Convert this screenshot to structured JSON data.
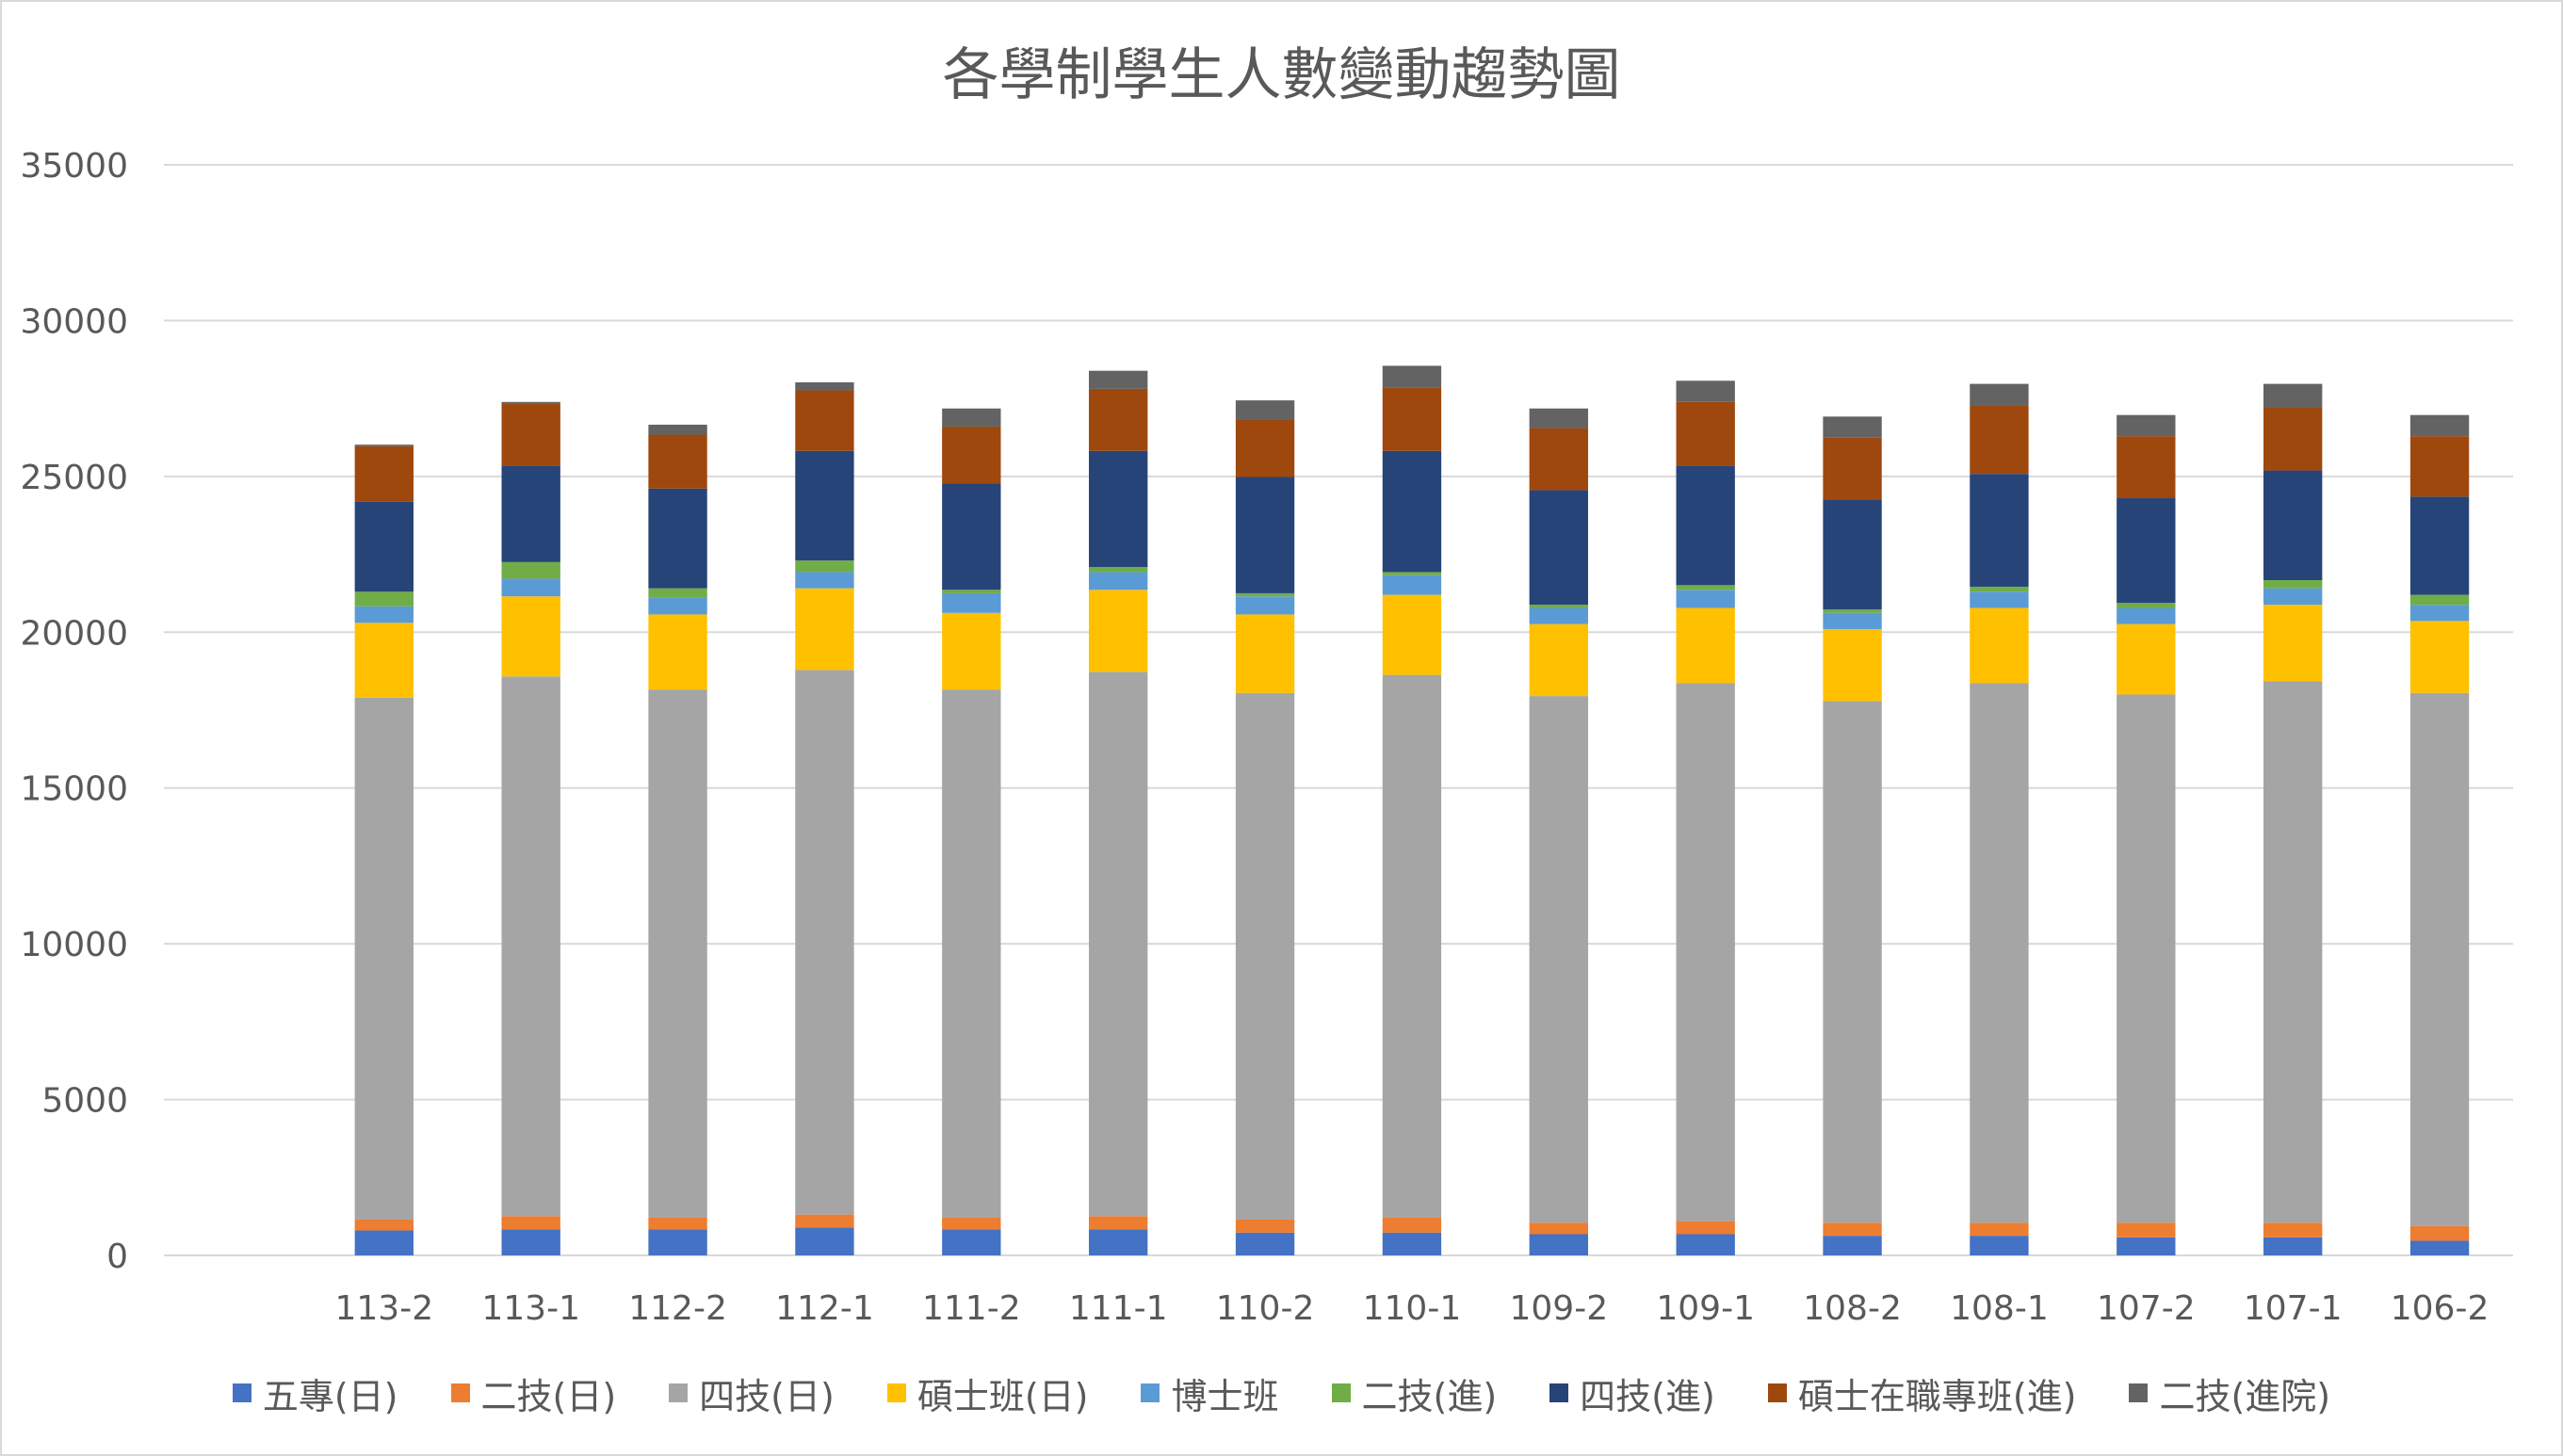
{
  "chart_data": {
    "type": "bar",
    "stacked": true,
    "title": "各學制學生人數變動趨勢圖",
    "xlabel": "",
    "ylabel": "",
    "ylim": [
      0,
      35000
    ],
    "yticks": [
      0,
      5000,
      10000,
      15000,
      20000,
      25000,
      30000,
      35000
    ],
    "grid": true,
    "legend_position": "bottom",
    "categories": [
      "",
      "113-2",
      "113-1",
      "112-2",
      "112-1",
      "111-2",
      "111-1",
      "110-2",
      "110-1",
      "109-2",
      "109-1",
      "108-2",
      "108-1",
      "107-2",
      "107-1",
      "106-2"
    ],
    "series": [
      {
        "name": "五專(日)",
        "color": "#4472C4",
        "values": [
          null,
          800,
          840,
          840,
          890,
          840,
          840,
          730,
          730,
          680,
          680,
          630,
          630,
          580,
          580,
          470
        ]
      },
      {
        "name": "二技(日)",
        "color": "#ED7D31",
        "values": [
          null,
          350,
          420,
          370,
          420,
          370,
          420,
          420,
          480,
          370,
          420,
          420,
          420,
          470,
          470,
          470
        ]
      },
      {
        "name": "四技(日)",
        "color": "#A5A5A5",
        "values": [
          null,
          16750,
          17320,
          16950,
          17480,
          16950,
          17470,
          16900,
          17420,
          16900,
          17270,
          16740,
          17320,
          16950,
          17370,
          17110
        ]
      },
      {
        "name": "碩士班(日)",
        "color": "#FFC000",
        "values": [
          null,
          2400,
          2570,
          2410,
          2620,
          2460,
          2630,
          2520,
          2570,
          2310,
          2410,
          2310,
          2410,
          2260,
          2460,
          2310
        ]
      },
      {
        "name": "博士班",
        "color": "#5B9BD5",
        "values": [
          null,
          530,
          570,
          530,
          520,
          630,
          570,
          580,
          630,
          520,
          580,
          520,
          520,
          520,
          530,
          520
        ]
      },
      {
        "name": "二技(進)",
        "color": "#70AD47",
        "values": [
          null,
          470,
          530,
          310,
          370,
          110,
          160,
          100,
          100,
          100,
          150,
          110,
          160,
          160,
          260,
          320
        ]
      },
      {
        "name": "四技(進)",
        "color": "#264478",
        "values": [
          null,
          2890,
          3100,
          3200,
          3520,
          3410,
          3730,
          3730,
          3890,
          3680,
          3840,
          3510,
          3620,
          3360,
          3520,
          3150
        ]
      },
      {
        "name": "碩士在職專班(進)",
        "color": "#9E480E",
        "values": [
          null,
          1780,
          1990,
          1730,
          1940,
          1830,
          1990,
          1830,
          2040,
          1990,
          2040,
          2000,
          2210,
          1990,
          2040,
          1940
        ]
      },
      {
        "name": "二技(進院)",
        "color": "#636363",
        "values": [
          null,
          50,
          50,
          320,
          260,
          580,
          580,
          630,
          690,
          630,
          680,
          680,
          680,
          680,
          740,
          680
        ]
      }
    ]
  }
}
